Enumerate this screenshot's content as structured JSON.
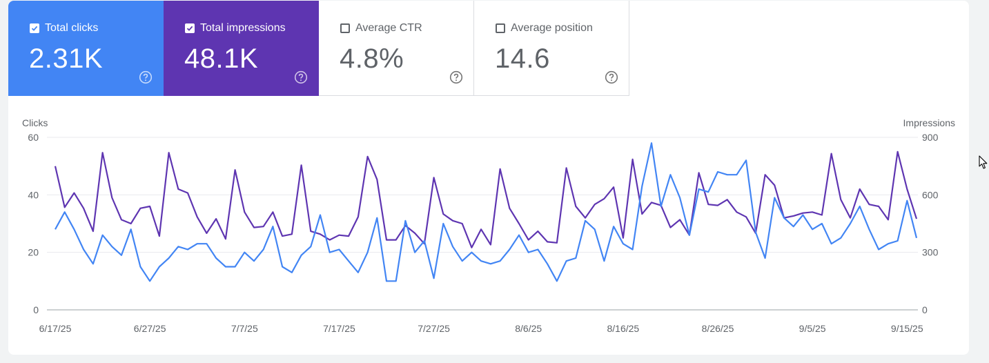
{
  "metrics": [
    {
      "label": "Total clicks",
      "value": "2.31K",
      "checked": true,
      "color": "#4285f4"
    },
    {
      "label": "Total impressions",
      "value": "48.1K",
      "checked": true,
      "color": "#5e35b1"
    },
    {
      "label": "Average CTR",
      "value": "4.8%",
      "checked": false
    },
    {
      "label": "Average position",
      "value": "14.6",
      "checked": false
    }
  ],
  "chart_data": {
    "type": "line",
    "ylabel": "Clicks",
    "y2label": "Impressions",
    "ylim": [
      0,
      60
    ],
    "y2lim": [
      0,
      900
    ],
    "yticks": [
      "0",
      "20",
      "40",
      "60"
    ],
    "y2ticks": [
      "0",
      "300",
      "600",
      "900"
    ],
    "xticks": [
      "6/17/25",
      "6/27/25",
      "7/7/25",
      "7/17/25",
      "7/27/25",
      "8/6/25",
      "8/16/25",
      "8/26/25",
      "9/5/25",
      "9/15/25"
    ],
    "x_start": "6/17/25",
    "x_end": "9/16/25",
    "grid": true,
    "series": [
      {
        "name": "Clicks",
        "axis": "left",
        "color": "#4285f4",
        "values": [
          28,
          34,
          28,
          21,
          16,
          26,
          22,
          19,
          28,
          15,
          10,
          15,
          18,
          22,
          21,
          23,
          23,
          18,
          15,
          15,
          20,
          17,
          21,
          29,
          15,
          13,
          19,
          22,
          33,
          20,
          21,
          17,
          13,
          20,
          32,
          10,
          10,
          31,
          20,
          24,
          11,
          30,
          22,
          17,
          20,
          17,
          16,
          17,
          21,
          26,
          20,
          21,
          16,
          10,
          17,
          18,
          31,
          28,
          17,
          29,
          23,
          21,
          43,
          58,
          36,
          47,
          39,
          26,
          42,
          41,
          48,
          47,
          47,
          52,
          27,
          18,
          39,
          32,
          29,
          33,
          28,
          30,
          23,
          25,
          30,
          36,
          28,
          21,
          23,
          24,
          38,
          25
        ]
      },
      {
        "name": "Impressions",
        "axis": "right",
        "color": "#5e35b1",
        "values": [
          750,
          535,
          610,
          530,
          410,
          820,
          585,
          470,
          450,
          530,
          540,
          385,
          820,
          630,
          610,
          485,
          400,
          475,
          370,
          730,
          510,
          430,
          435,
          510,
          385,
          395,
          755,
          410,
          395,
          365,
          390,
          385,
          485,
          800,
          680,
          365,
          365,
          440,
          400,
          345,
          690,
          500,
          465,
          450,
          325,
          420,
          340,
          735,
          530,
          450,
          365,
          410,
          355,
          350,
          740,
          540,
          480,
          550,
          580,
          640,
          375,
          785,
          500,
          560,
          545,
          430,
          470,
          390,
          715,
          550,
          545,
          575,
          510,
          485,
          400,
          705,
          650,
          480,
          490,
          505,
          510,
          495,
          815,
          575,
          480,
          630,
          550,
          540,
          470,
          825,
          630,
          475
        ]
      }
    ]
  },
  "cursor_icon": "mouse-pointer-icon",
  "help_icon": "help-circle-icon"
}
